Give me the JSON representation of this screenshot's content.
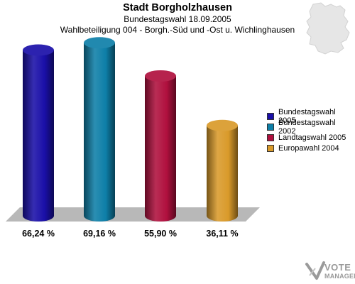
{
  "header": {
    "title": "Stadt Borgholzhausen",
    "subtitle": "Bundestagswahl 18.09.2005",
    "subtitle2": "Wahlbeteiligung 004 - Borgh.-Süd und -Ost u. Wichlinghausen"
  },
  "legend": [
    {
      "label": "Bundestagswahl 2005",
      "color": "#1a0fa8"
    },
    {
      "label": "Bundestagswahl 2002",
      "color": "#0e7fa8"
    },
    {
      "label": "Landtagswahl 2005",
      "color": "#b0103e"
    },
    {
      "label": "Europawahl 2004",
      "color": "#d99a2a"
    }
  ],
  "logo": {
    "line1": "VOTE",
    "line2": "MANAGER"
  },
  "chart_data": {
    "type": "bar",
    "categories": [
      "Bundestagswahl 2005",
      "Bundestagswahl 2002",
      "Landtagswahl 2005",
      "Europawahl 2004"
    ],
    "values": [
      66.24,
      69.16,
      55.9,
      36.11
    ],
    "value_labels": [
      "66,24 %",
      "69,16 %",
      "55,90 %",
      "36,11 %"
    ],
    "colors": [
      "#1a0fa8",
      "#0e7fa8",
      "#b0103e",
      "#d99a2a"
    ],
    "title": "Stadt Borgholzhausen",
    "ylim": [
      0,
      80
    ],
    "legend_position": "right",
    "grid": false
  }
}
